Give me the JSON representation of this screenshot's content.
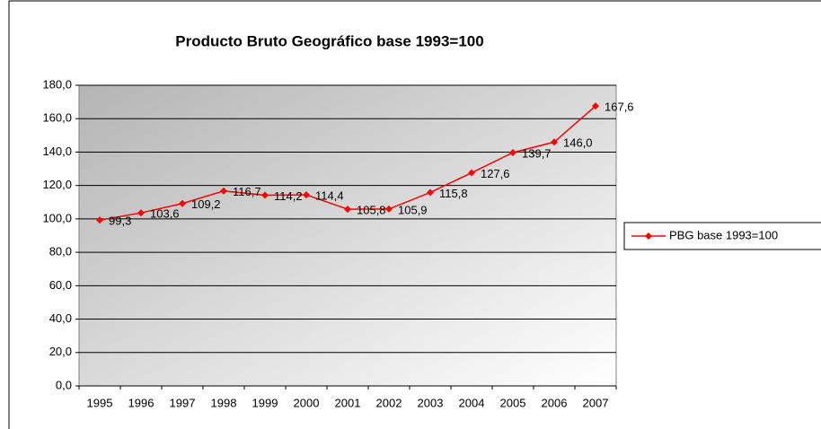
{
  "chart_data": {
    "type": "line",
    "title": "Producto Bruto Geográfico base 1993=100",
    "categories": [
      "1995",
      "1996",
      "1997",
      "1998",
      "1999",
      "2000",
      "2001",
      "2002",
      "2003",
      "2004",
      "2005",
      "2006",
      "2007"
    ],
    "series": [
      {
        "name": "PBG base 1993=100",
        "color": "#ff0000",
        "values": [
          99.3,
          103.6,
          109.2,
          116.7,
          114.2,
          114.4,
          105.8,
          105.9,
          115.8,
          127.6,
          139.7,
          146.0,
          167.6
        ],
        "value_labels": [
          "99,3",
          "103,6",
          "109,2",
          "116,7",
          "114,2",
          "114,4",
          "105,8",
          "105,9",
          "115,8",
          "127,6",
          "139,7",
          "146,0",
          "167,6"
        ]
      }
    ],
    "ylim": [
      0,
      180
    ],
    "yticks": [
      {
        "value": 0,
        "label": "0,0"
      },
      {
        "value": 20,
        "label": "20,0"
      },
      {
        "value": 40,
        "label": "40,0"
      },
      {
        "value": 60,
        "label": "60,0"
      },
      {
        "value": 80,
        "label": "80,0"
      },
      {
        "value": 100,
        "label": "100,0"
      },
      {
        "value": 120,
        "label": "120,0"
      },
      {
        "value": 140,
        "label": "140,0"
      },
      {
        "value": 160,
        "label": "160,0"
      },
      {
        "value": 180,
        "label": "180,0"
      }
    ],
    "grid": true,
    "legend": "right"
  }
}
